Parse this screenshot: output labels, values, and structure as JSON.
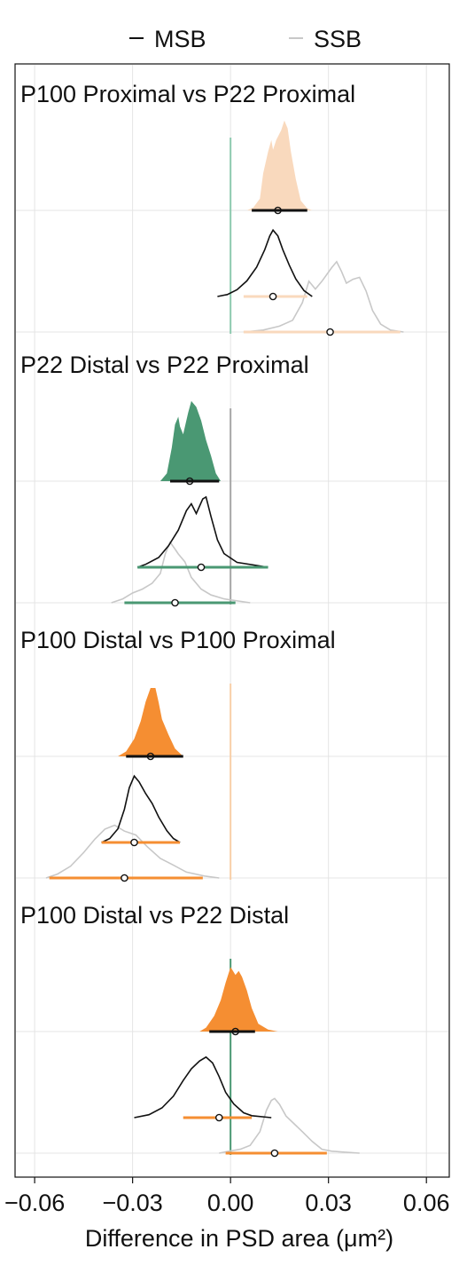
{
  "chart_data": {
    "type": "density",
    "legend": {
      "position": "top",
      "entries": [
        {
          "name": "MSB",
          "color": "#111111"
        },
        {
          "name": "SSB",
          "color": "#c8c8c8"
        }
      ]
    },
    "xlabel": "Difference in PSD area (μm²)",
    "xlim": [
      -0.066,
      0.067
    ],
    "x_ticks": [
      -0.06,
      -0.03,
      0.0,
      0.03,
      0.06
    ],
    "x_tick_labels": [
      "−0.06",
      "−0.03",
      "0.00",
      "0.03",
      "0.06"
    ],
    "grid": true,
    "panels": [
      {
        "title": "P100 Proximal vs P22 Proximal",
        "accent": "#f9d9bd",
        "zero_line_color": "#8ecab0",
        "pooled": {
          "median": 0.0145,
          "ci": [
            0.0065,
            0.0235
          ],
          "fill": "#f9d9bd",
          "points": [
            [
              0.005,
              0
            ],
            [
              0.007,
              0.03
            ],
            [
              0.009,
              0.12
            ],
            [
              0.01,
              0.38
            ],
            [
              0.0115,
              0.6
            ],
            [
              0.0125,
              0.72
            ],
            [
              0.013,
              0.62
            ],
            [
              0.014,
              0.72
            ],
            [
              0.0155,
              0.82
            ],
            [
              0.0165,
              0.92
            ],
            [
              0.0175,
              0.84
            ],
            [
              0.0185,
              0.6
            ],
            [
              0.02,
              0.32
            ],
            [
              0.0215,
              0.1
            ],
            [
              0.0235,
              0.02
            ],
            [
              0.025,
              0
            ]
          ]
        },
        "msb": {
          "median": 0.013,
          "ci": [
            0.004,
            0.0235
          ],
          "points": [
            [
              -0.004,
              0
            ],
            [
              -0.001,
              0.02
            ],
            [
              0.002,
              0.07
            ],
            [
              0.005,
              0.16
            ],
            [
              0.008,
              0.3
            ],
            [
              0.0105,
              0.48
            ],
            [
              0.012,
              0.62
            ],
            [
              0.013,
              0.68
            ],
            [
              0.0145,
              0.62
            ],
            [
              0.016,
              0.48
            ],
            [
              0.018,
              0.32
            ],
            [
              0.02,
              0.18
            ],
            [
              0.0225,
              0.06
            ],
            [
              0.025,
              0
            ]
          ]
        },
        "ssb": {
          "median": 0.0305,
          "ci": [
            0.004,
            0.052
          ],
          "points": [
            [
              0.004,
              0
            ],
            [
              0.01,
              0.02
            ],
            [
              0.015,
              0.06
            ],
            [
              0.019,
              0.12
            ],
            [
              0.022,
              0.3
            ],
            [
              0.024,
              0.52
            ],
            [
              0.026,
              0.44
            ],
            [
              0.028,
              0.52
            ],
            [
              0.031,
              0.66
            ],
            [
              0.0325,
              0.72
            ],
            [
              0.034,
              0.62
            ],
            [
              0.0355,
              0.5
            ],
            [
              0.0375,
              0.54
            ],
            [
              0.0395,
              0.56
            ],
            [
              0.0415,
              0.42
            ],
            [
              0.0435,
              0.22
            ],
            [
              0.046,
              0.08
            ],
            [
              0.049,
              0.02
            ],
            [
              0.053,
              0
            ]
          ]
        }
      },
      {
        "title": "P22 Distal vs P22 Proximal",
        "accent": "#4a9873",
        "zero_line_color": "#a7a7a7",
        "pooled": {
          "median": -0.0125,
          "ci": [
            -0.0185,
            -0.0035
          ],
          "fill": "#4a9873",
          "points": [
            [
              -0.0215,
              0
            ],
            [
              -0.0195,
              0.08
            ],
            [
              -0.018,
              0.34
            ],
            [
              -0.017,
              0.58
            ],
            [
              -0.016,
              0.66
            ],
            [
              -0.0155,
              0.56
            ],
            [
              -0.0145,
              0.48
            ],
            [
              -0.013,
              0.7
            ],
            [
              -0.012,
              0.82
            ],
            [
              -0.0105,
              0.76
            ],
            [
              -0.009,
              0.62
            ],
            [
              -0.0075,
              0.42
            ],
            [
              -0.006,
              0.26
            ],
            [
              -0.0045,
              0.08
            ],
            [
              -0.003,
              0
            ]
          ]
        },
        "msb": {
          "median": -0.009,
          "ci": [
            -0.0285,
            0.0115
          ],
          "points": [
            [
              -0.0285,
              0
            ],
            [
              -0.026,
              0.03
            ],
            [
              -0.022,
              0.1
            ],
            [
              -0.019,
              0.22
            ],
            [
              -0.016,
              0.38
            ],
            [
              -0.0135,
              0.58
            ],
            [
              -0.012,
              0.65
            ],
            [
              -0.0105,
              0.55
            ],
            [
              -0.0085,
              0.7
            ],
            [
              -0.0075,
              0.72
            ],
            [
              -0.006,
              0.52
            ],
            [
              -0.004,
              0.28
            ],
            [
              -0.002,
              0.14
            ],
            [
              0.002,
              0.05
            ],
            [
              0.0115,
              0
            ]
          ]
        },
        "ssb": {
          "median": -0.017,
          "ci": [
            -0.0325,
            0.0015
          ],
          "points": [
            [
              -0.0365,
              0
            ],
            [
              -0.033,
              0.04
            ],
            [
              -0.03,
              0.1
            ],
            [
              -0.027,
              0.14
            ],
            [
              -0.024,
              0.2
            ],
            [
              -0.0215,
              0.3
            ],
            [
              -0.02,
              0.5
            ],
            [
              -0.0185,
              0.62
            ],
            [
              -0.017,
              0.55
            ],
            [
              -0.016,
              0.5
            ],
            [
              -0.014,
              0.42
            ],
            [
              -0.012,
              0.26
            ],
            [
              -0.009,
              0.14
            ],
            [
              -0.006,
              0.08
            ],
            [
              -0.002,
              0.04
            ],
            [
              0.006,
              0
            ]
          ]
        }
      },
      {
        "title": "P100 Distal vs P100 Proximal",
        "accent": "#f58e32",
        "zero_line_color": "#f8cfa8",
        "pooled": {
          "median": -0.0245,
          "ci": [
            -0.032,
            -0.0145
          ],
          "fill": "#f58e32",
          "points": [
            [
              -0.0345,
              0
            ],
            [
              -0.032,
              0.05
            ],
            [
              -0.0295,
              0.18
            ],
            [
              -0.0275,
              0.36
            ],
            [
              -0.026,
              0.56
            ],
            [
              -0.0245,
              0.7
            ],
            [
              -0.023,
              0.7
            ],
            [
              -0.022,
              0.55
            ],
            [
              -0.021,
              0.38
            ],
            [
              -0.019,
              0.22
            ],
            [
              -0.017,
              0.08
            ],
            [
              -0.0145,
              0
            ]
          ]
        },
        "msb": {
          "median": -0.0295,
          "ci": [
            -0.0395,
            -0.0155
          ],
          "points": [
            [
              -0.0395,
              0
            ],
            [
              -0.037,
              0.04
            ],
            [
              -0.0345,
              0.14
            ],
            [
              -0.0325,
              0.34
            ],
            [
              -0.031,
              0.56
            ],
            [
              -0.0295,
              0.68
            ],
            [
              -0.028,
              0.62
            ],
            [
              -0.026,
              0.5
            ],
            [
              -0.024,
              0.4
            ],
            [
              -0.022,
              0.26
            ],
            [
              -0.0195,
              0.12
            ],
            [
              -0.0175,
              0.04
            ],
            [
              -0.0155,
              0
            ]
          ]
        },
        "ssb": {
          "median": -0.0325,
          "ci": [
            -0.0555,
            -0.0085
          ],
          "points": [
            [
              -0.0565,
              0
            ],
            [
              -0.053,
              0.04
            ],
            [
              -0.049,
              0.12
            ],
            [
              -0.045,
              0.26
            ],
            [
              -0.0415,
              0.4
            ],
            [
              -0.0385,
              0.5
            ],
            [
              -0.0355,
              0.54
            ],
            [
              -0.0325,
              0.48
            ],
            [
              -0.029,
              0.44
            ],
            [
              -0.0255,
              0.32
            ],
            [
              -0.0215,
              0.2
            ],
            [
              -0.018,
              0.14
            ],
            [
              -0.0135,
              0.06
            ],
            [
              -0.008,
              0.02
            ],
            [
              -0.0035,
              0
            ]
          ]
        }
      },
      {
        "title": "P100 Distal vs P22 Distal",
        "accent": "#f58e32",
        "zero_line_color": "#4a9873",
        "pooled": {
          "median": 0.0015,
          "ci": [
            -0.0065,
            0.0075
          ],
          "fill": "#f58e32",
          "points": [
            [
              -0.0095,
              0
            ],
            [
              -0.0075,
              0.04
            ],
            [
              -0.005,
              0.16
            ],
            [
              -0.003,
              0.32
            ],
            [
              -0.0015,
              0.5
            ],
            [
              0.0,
              0.66
            ],
            [
              0.0015,
              0.58
            ],
            [
              0.0025,
              0.62
            ],
            [
              0.0035,
              0.56
            ],
            [
              0.005,
              0.42
            ],
            [
              0.0065,
              0.24
            ],
            [
              0.0085,
              0.08
            ],
            [
              0.0115,
              0.02
            ],
            [
              0.0145,
              0
            ]
          ]
        },
        "msb": {
          "median": -0.0035,
          "ci": [
            -0.0145,
            0.0065
          ],
          "points": [
            [
              -0.0295,
              0
            ],
            [
              -0.025,
              0.03
            ],
            [
              -0.021,
              0.1
            ],
            [
              -0.0175,
              0.22
            ],
            [
              -0.0145,
              0.38
            ],
            [
              -0.012,
              0.5
            ],
            [
              -0.0095,
              0.58
            ],
            [
              -0.0075,
              0.62
            ],
            [
              -0.0055,
              0.56
            ],
            [
              -0.0035,
              0.42
            ],
            [
              -0.0015,
              0.26
            ],
            [
              0.001,
              0.14
            ],
            [
              0.004,
              0.05
            ],
            [
              0.0065,
              0.02
            ],
            [
              0.0125,
              0
            ]
          ]
        },
        "ssb": {
          "median": 0.0135,
          "ci": [
            -0.0015,
            0.0295
          ],
          "points": [
            [
              -0.0035,
              0
            ],
            [
              -0.0005,
              0.02
            ],
            [
              0.003,
              0.04
            ],
            [
              0.006,
              0.08
            ],
            [
              0.009,
              0.22
            ],
            [
              0.011,
              0.44
            ],
            [
              0.0125,
              0.54
            ],
            [
              0.0135,
              0.56
            ],
            [
              0.015,
              0.5
            ],
            [
              0.017,
              0.38
            ],
            [
              0.0195,
              0.3
            ],
            [
              0.022,
              0.22
            ],
            [
              0.025,
              0.12
            ],
            [
              0.028,
              0.04
            ],
            [
              0.031,
              0.02
            ],
            [
              0.0395,
              0
            ]
          ]
        }
      }
    ]
  }
}
